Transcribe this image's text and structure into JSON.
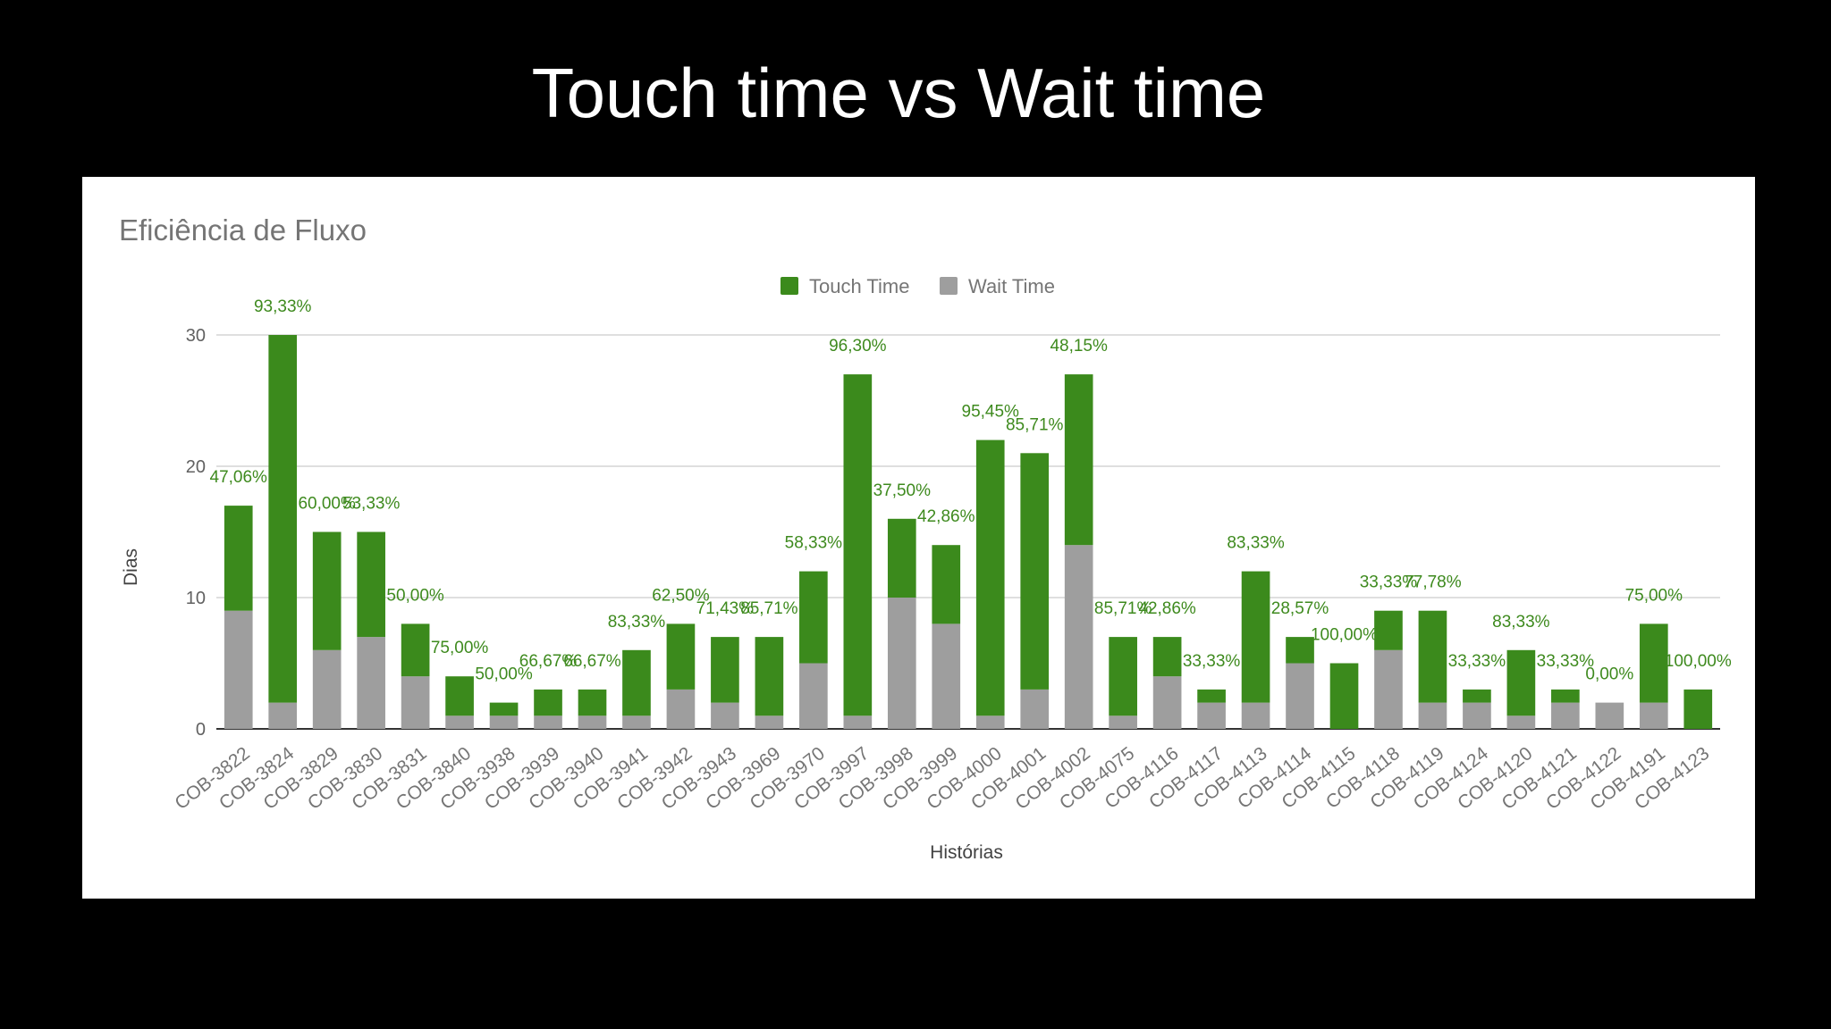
{
  "slide": {
    "title": "Touch time vs Wait time"
  },
  "colors": {
    "touch": "#3b8a1c",
    "wait": "#9e9e9e",
    "label": "#3e8a1e",
    "grid": "#cccccc",
    "axis": "#333333"
  },
  "chart_data": {
    "type": "bar",
    "stacked": true,
    "title": "Eficiência de Fluxo",
    "xlabel": "Histórias",
    "ylabel": "Dias",
    "ylim": [
      0,
      30
    ],
    "yticks": [
      "0",
      "10",
      "20",
      "30"
    ],
    "grid": true,
    "legend": "top-center",
    "categories": [
      "COB-3822",
      "COB-3824",
      "COB-3829",
      "COB-3830",
      "COB-3831",
      "COB-3840",
      "COB-3938",
      "COB-3939",
      "COB-3940",
      "COB-3941",
      "COB-3942",
      "COB-3943",
      "COB-3969",
      "COB-3970",
      "COB-3997",
      "COB-3998",
      "COB-3999",
      "COB-4000",
      "COB-4001",
      "COB-4002",
      "COB-4075",
      "COB-4116",
      "COB-4117",
      "COB-4113",
      "COB-4114",
      "COB-4115",
      "COB-4118",
      "COB-4119",
      "COB-4124",
      "COB-4120",
      "COB-4121",
      "COB-4122",
      "COB-4191",
      "COB-4123"
    ],
    "series": [
      {
        "name": "Wait Time",
        "values": [
          9,
          2,
          6,
          7,
          4,
          1,
          1,
          1,
          1,
          1,
          3,
          2,
          1,
          5,
          1,
          10,
          8,
          1,
          3,
          14,
          1,
          4,
          2,
          2,
          5,
          0,
          6,
          2,
          2,
          1,
          2,
          2,
          2,
          0
        ]
      },
      {
        "name": "Touch Time",
        "values": [
          8,
          28,
          9,
          8,
          4,
          3,
          1,
          2,
          2,
          5,
          5,
          5,
          6,
          7,
          26,
          6,
          6,
          21,
          18,
          13,
          6,
          3,
          1,
          10,
          2,
          5,
          3,
          7,
          1,
          5,
          1,
          0,
          6,
          3
        ]
      }
    ],
    "data_labels": [
      "47,06%",
      "93,33%",
      "60,00%",
      "53,33%",
      "50,00%",
      "75,00%",
      "50,00%",
      "66,67%",
      "66,67%",
      "83,33%",
      "62,50%",
      "71,43%",
      "85,71%",
      "58,33%",
      "96,30%",
      "37,50%",
      "42,86%",
      "95,45%",
      "85,71%",
      "48,15%",
      "85,71%",
      "42,86%",
      "33,33%",
      "83,33%",
      "28,57%",
      "100,00%",
      "33,33%",
      "77,78%",
      "33,33%",
      "83,33%",
      "33,33%",
      "0,00%",
      "75,00%",
      "100,00%"
    ]
  }
}
